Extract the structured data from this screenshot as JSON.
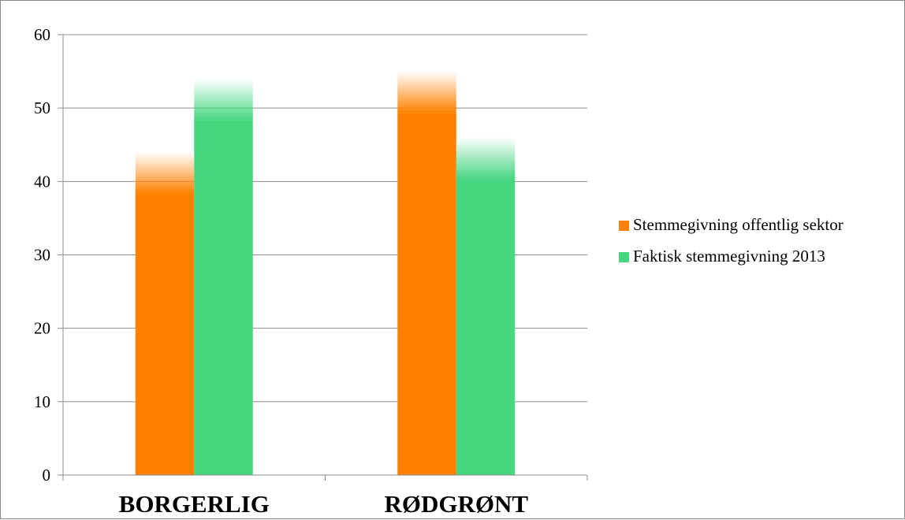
{
  "chart_data": {
    "type": "bar",
    "categories": [
      "BORGERLIG",
      "RØDGRØNT"
    ],
    "series": [
      {
        "name": "Stemmegivning offentlig sektor",
        "color": "#ff8000",
        "values": [
          44,
          55
        ]
      },
      {
        "name": "Faktisk stemmegivning 2013",
        "color": "#47d680",
        "values": [
          54,
          46
        ]
      }
    ],
    "ylim": [
      0,
      60
    ],
    "yticks": [
      "0",
      "10",
      "20",
      "30",
      "40",
      "50",
      "60"
    ],
    "grid": true,
    "legend_position": "right",
    "title": "",
    "xlabel": "",
    "ylabel": ""
  }
}
